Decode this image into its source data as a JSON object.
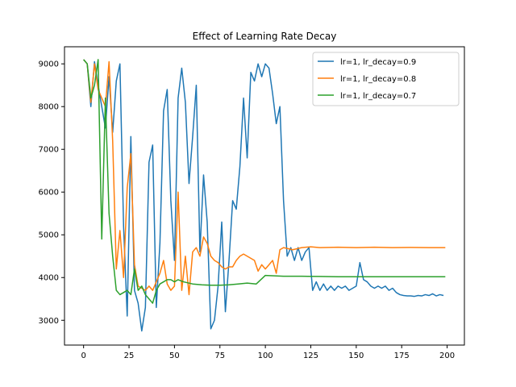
{
  "chart_data": {
    "type": "line",
    "title": "Effect of Learning Rate Decay",
    "xlabel": "",
    "ylabel": "",
    "xlim": [
      -10.5,
      209.5
    ],
    "ylim": [
      2420,
      9400
    ],
    "xticks": [
      0,
      25,
      50,
      75,
      100,
      125,
      150,
      175,
      200
    ],
    "yticks": [
      3000,
      4000,
      5000,
      6000,
      7000,
      8000,
      9000
    ],
    "grid": false,
    "legend_position": "top-right",
    "series": [
      {
        "name": "lr=1, lr_decay=0.9",
        "color": "#1f77b4",
        "x": [
          0,
          2,
          4,
          6,
          8,
          10,
          12,
          14,
          16,
          18,
          20,
          22,
          24,
          26,
          28,
          30,
          32,
          34,
          36,
          38,
          40,
          42,
          44,
          46,
          48,
          50,
          52,
          54,
          56,
          58,
          60,
          62,
          64,
          66,
          68,
          70,
          72,
          74,
          76,
          78,
          80,
          82,
          84,
          86,
          88,
          90,
          92,
          94,
          96,
          98,
          100,
          102,
          104,
          106,
          108,
          110,
          112,
          114,
          116,
          118,
          120,
          122,
          124,
          126,
          128,
          130,
          132,
          134,
          136,
          138,
          140,
          142,
          144,
          146,
          148,
          150,
          152,
          154,
          156,
          158,
          160,
          162,
          164,
          166,
          168,
          170,
          172,
          174,
          176,
          178,
          180,
          182,
          184,
          186,
          188,
          190,
          192,
          194,
          196,
          198
        ],
        "values": [
          9100,
          9000,
          8000,
          9050,
          8500,
          8000,
          7500,
          8700,
          7400,
          8600,
          9000,
          5200,
          3100,
          7300,
          3700,
          3400,
          2750,
          3300,
          6700,
          7100,
          3300,
          4800,
          7900,
          8400,
          5800,
          4400,
          8200,
          8900,
          8100,
          6200,
          7300,
          8500,
          4600,
          6400,
          5300,
          2800,
          3000,
          3800,
          5300,
          3200,
          4400,
          5800,
          5600,
          6600,
          8200,
          6800,
          8800,
          8600,
          9000,
          8700,
          9000,
          8900,
          8300,
          7600,
          8000,
          5800,
          4500,
          4700,
          4400,
          4700,
          4400,
          4600,
          4700,
          3700,
          3900,
          3700,
          3850,
          3700,
          3800,
          3700,
          3800,
          3750,
          3800,
          3700,
          3750,
          3800,
          4350,
          3950,
          3900,
          3800,
          3750,
          3800,
          3750,
          3800,
          3700,
          3750,
          3650,
          3600,
          3580,
          3570,
          3570,
          3560,
          3580,
          3570,
          3600,
          3580,
          3620,
          3570,
          3600,
          3580
        ]
      },
      {
        "name": "lr=1, lr_decay=0.8",
        "color": "#ff7f0e",
        "x": [
          0,
          2,
          4,
          6,
          8,
          10,
          12,
          14,
          16,
          18,
          20,
          22,
          24,
          26,
          28,
          30,
          32,
          34,
          36,
          38,
          40,
          42,
          44,
          46,
          48,
          50,
          52,
          54,
          56,
          58,
          60,
          62,
          64,
          66,
          68,
          70,
          72,
          74,
          76,
          78,
          80,
          82,
          84,
          86,
          88,
          90,
          92,
          94,
          96,
          98,
          100,
          102,
          104,
          106,
          108,
          110,
          115,
          120,
          125,
          130,
          140,
          150,
          160,
          170,
          180,
          190,
          199
        ],
        "values": [
          9100,
          9000,
          8100,
          9000,
          8400,
          8200,
          8000,
          9050,
          7200,
          4200,
          5100,
          4000,
          6100,
          6900,
          4300,
          3800,
          3750,
          3700,
          3800,
          3700,
          3900,
          4100,
          4400,
          3850,
          3700,
          3800,
          6000,
          3700,
          4500,
          3600,
          4600,
          4700,
          4500,
          4950,
          4800,
          4500,
          4400,
          4350,
          4250,
          4200,
          4250,
          4250,
          4400,
          4500,
          4550,
          4500,
          4450,
          4400,
          4150,
          4300,
          4200,
          4300,
          4400,
          4100,
          4650,
          4700,
          4650,
          4700,
          4720,
          4700,
          4710,
          4700,
          4710,
          4700,
          4705,
          4700,
          4700
        ]
      },
      {
        "name": "lr=1, lr_decay=0.7",
        "color": "#2ca02c",
        "x": [
          0,
          2,
          4,
          6,
          8,
          10,
          12,
          14,
          16,
          18,
          20,
          22,
          24,
          26,
          28,
          30,
          32,
          34,
          36,
          38,
          40,
          42,
          44,
          46,
          48,
          50,
          52,
          55,
          60,
          65,
          70,
          75,
          80,
          85,
          90,
          95,
          100,
          110,
          120,
          130,
          140,
          150,
          160,
          170,
          180,
          190,
          199
        ],
        "values": [
          9100,
          9000,
          8200,
          8500,
          9100,
          4900,
          8200,
          5500,
          4500,
          3700,
          3600,
          3650,
          3700,
          3600,
          4200,
          3700,
          3800,
          3600,
          3500,
          3400,
          3700,
          3850,
          3900,
          3950,
          3950,
          3900,
          3950,
          3900,
          3850,
          3830,
          3820,
          3820,
          3830,
          3850,
          3870,
          3850,
          4050,
          4030,
          4030,
          4025,
          4020,
          4020,
          4020,
          4020,
          4020,
          4020,
          4020
        ]
      }
    ]
  }
}
